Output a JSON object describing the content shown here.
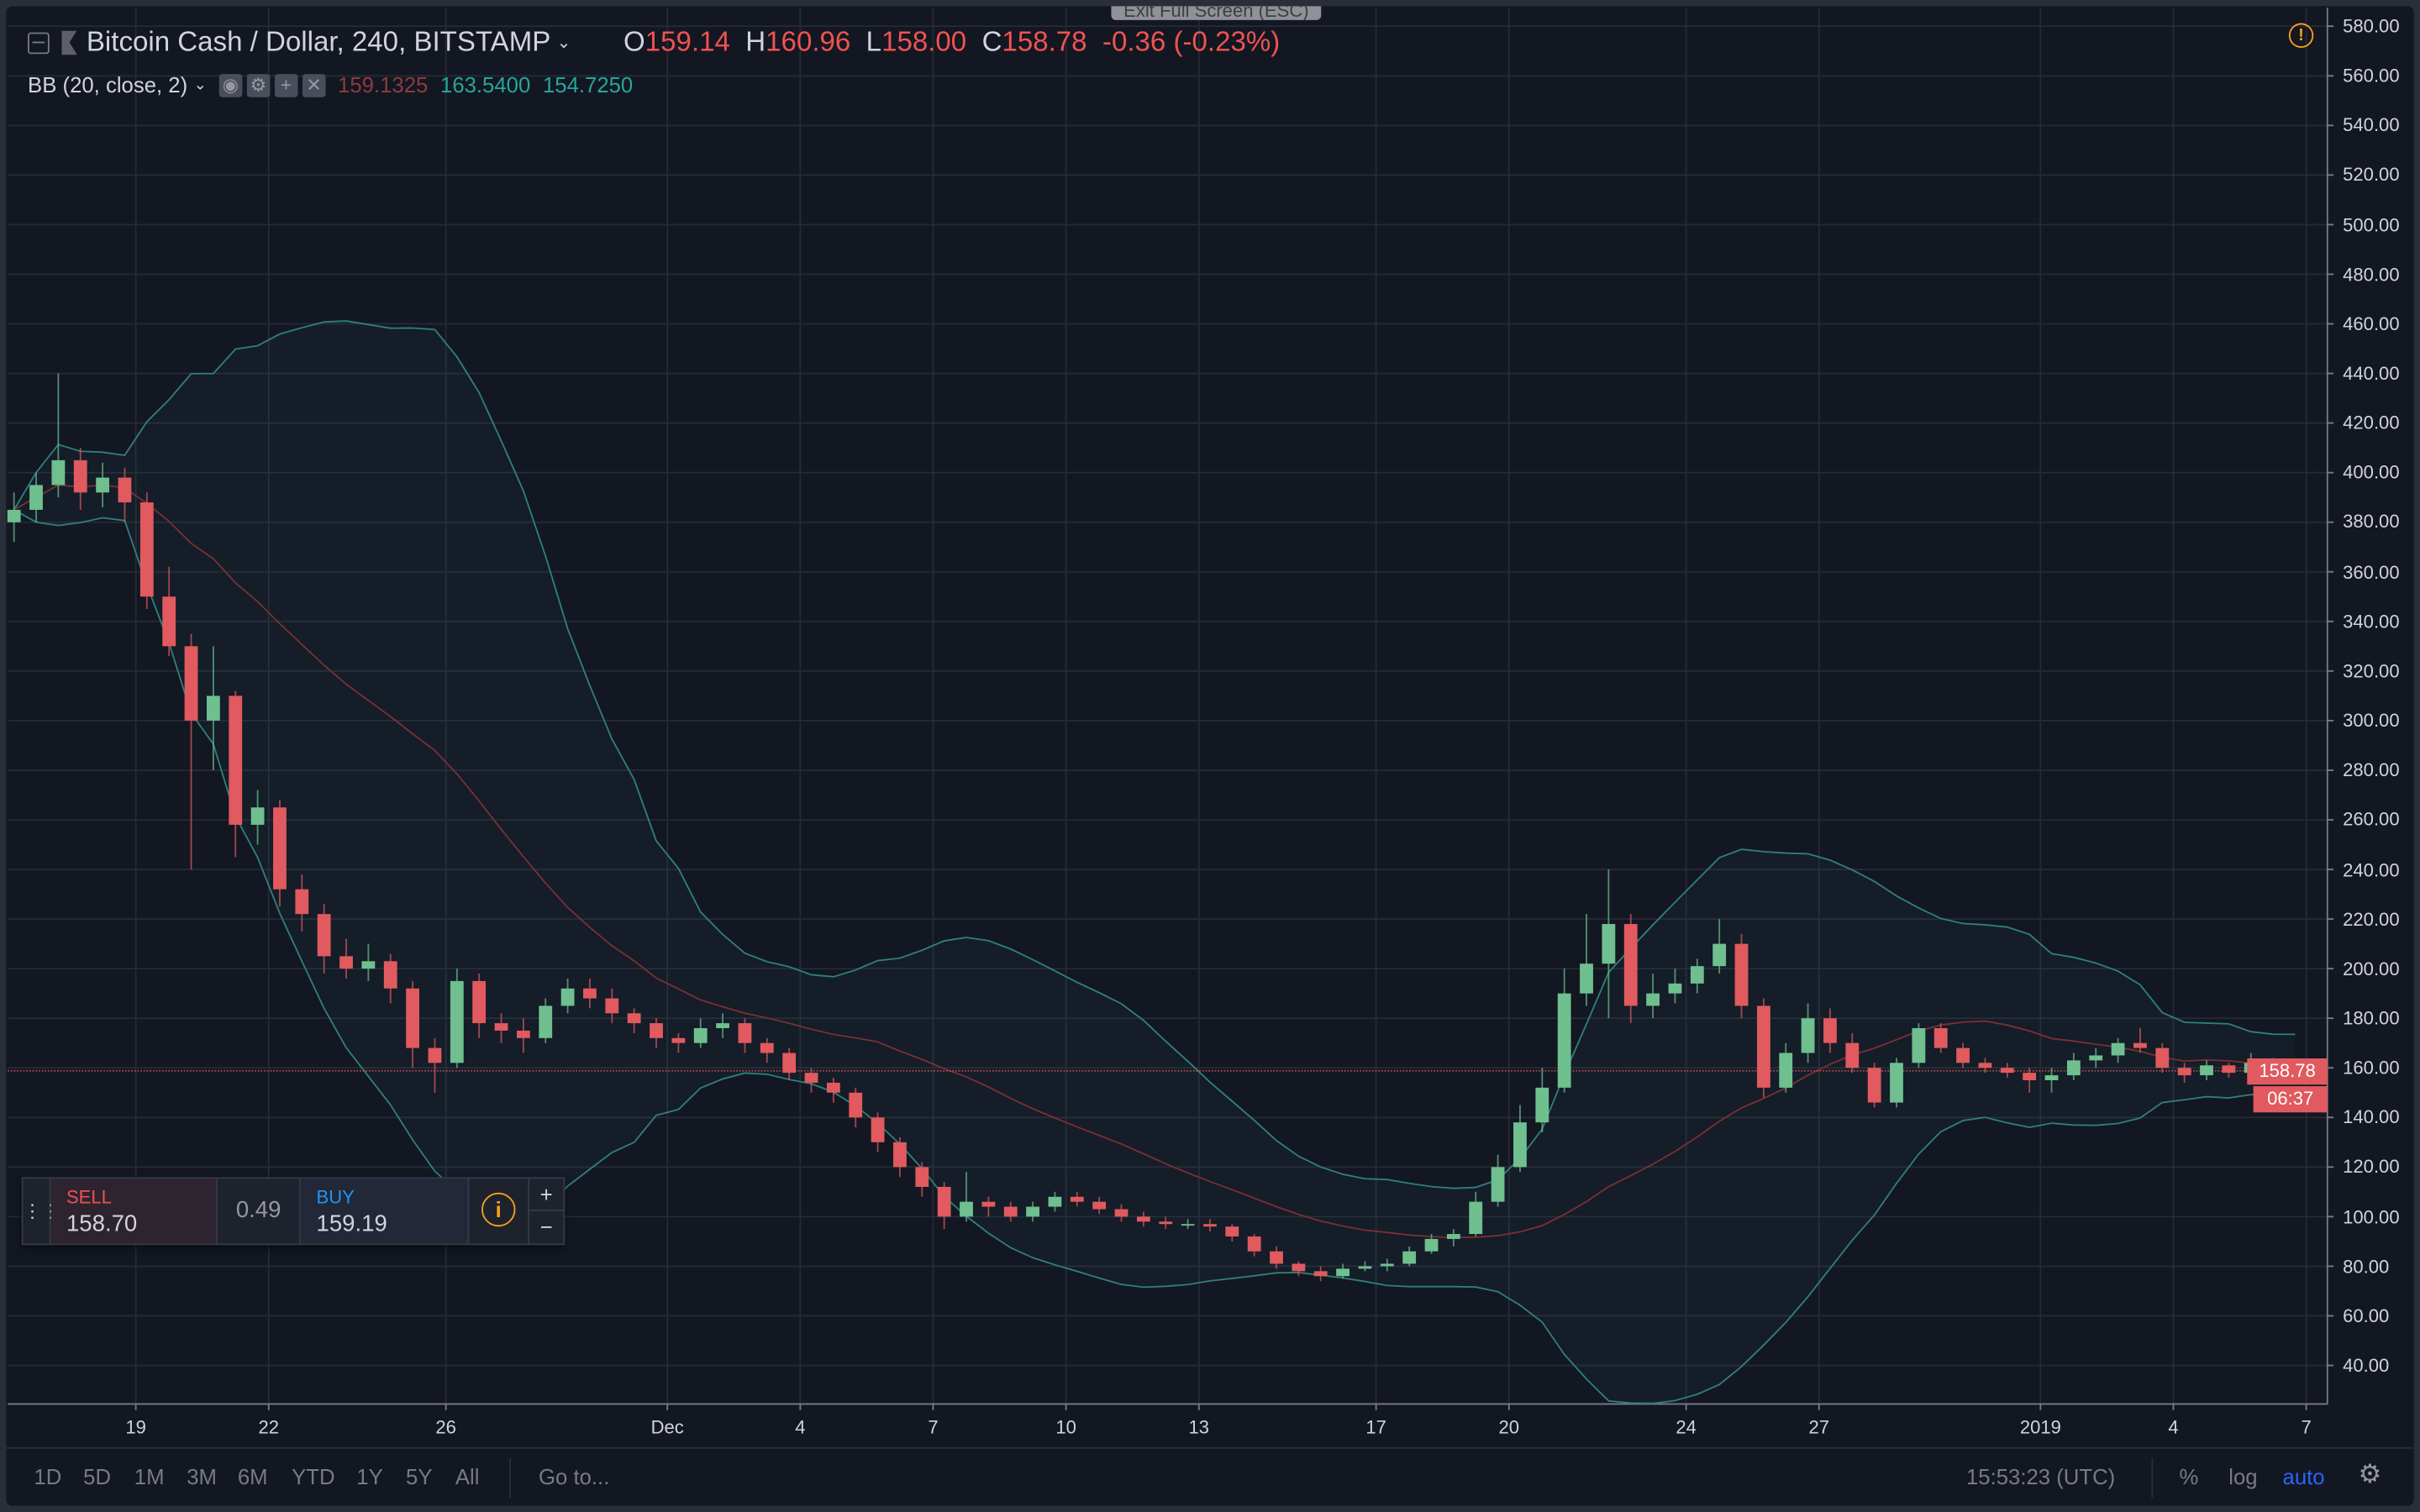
{
  "header": {
    "symbol": "Bitcoin Cash / Dollar, 240, BITSTAMP",
    "ohlc": {
      "o_label": "O",
      "o": "159.14",
      "h_label": "H",
      "h": "160.96",
      "l_label": "L",
      "l": "158.00",
      "c_label": "C",
      "c": "158.78",
      "change": "-0.36 (-0.23%)"
    },
    "indicator": {
      "name": "BB (20, close, 2)",
      "basis": "159.1325",
      "upper": "163.5400",
      "lower": "154.7250"
    },
    "fullscreen_tooltip": "Exit Full Screen (ESC)"
  },
  "price_axis": {
    "labels": [
      "580.00",
      "560.00",
      "540.00",
      "520.00",
      "500.00",
      "480.00",
      "460.00",
      "440.00",
      "420.00",
      "400.00",
      "380.00",
      "360.00",
      "340.00",
      "320.00",
      "300.00",
      "280.00",
      "260.00",
      "240.00",
      "220.00",
      "200.00",
      "180.00",
      "160.00",
      "140.00",
      "120.00",
      "100.00",
      "80.00",
      "60.00",
      "40.00"
    ],
    "last_price": "158.78",
    "countdown": "06:37"
  },
  "trade_widget": {
    "sell_label": "SELL",
    "sell_price": "158.70",
    "spread": "0.49",
    "buy_label": "BUY",
    "buy_price": "159.19",
    "plus": "+",
    "minus": "−"
  },
  "bottom_bar": {
    "ranges": [
      "1D",
      "5D",
      "1M",
      "3M",
      "6M",
      "YTD",
      "1Y",
      "5Y",
      "All"
    ],
    "goto": "Go to...",
    "clock": "15:53:23 (UTC)",
    "percent": "%",
    "log": "log",
    "auto": "auto"
  },
  "colors": {
    "up": "#6fbf8f",
    "down": "#e05a5f",
    "band": "#2f7f7c",
    "basis": "#7a2f34",
    "background": "#131722",
    "accent": "#2962ff",
    "warning": "#f7a21b"
  },
  "chart_data": {
    "type": "candlestick",
    "ylim": [
      40,
      580
    ],
    "grid": true,
    "scale": "linear",
    "indicator": {
      "type": "bollinger",
      "period": 20,
      "source": "close",
      "stddev": 2
    },
    "x_ticks": [
      {
        "label": "19",
        "date": "2018-11-19"
      },
      {
        "label": "22",
        "date": "2018-11-22"
      },
      {
        "label": "26",
        "date": "2018-11-26"
      },
      {
        "label": "Dec",
        "date": "2018-12-01"
      },
      {
        "label": "4",
        "date": "2018-12-04"
      },
      {
        "label": "7",
        "date": "2018-12-07"
      },
      {
        "label": "10",
        "date": "2018-12-10"
      },
      {
        "label": "13",
        "date": "2018-12-13"
      },
      {
        "label": "17",
        "date": "2018-12-17"
      },
      {
        "label": "20",
        "date": "2018-12-20"
      },
      {
        "label": "24",
        "date": "2018-12-24"
      },
      {
        "label": "27",
        "date": "2018-12-27"
      },
      {
        "label": "2019",
        "date": "2019-01-01"
      },
      {
        "label": "4",
        "date": "2019-01-04"
      },
      {
        "label": "7",
        "date": "2019-01-07"
      }
    ],
    "candles_ohlc": [
      [
        "2018-11-16 00:00",
        380,
        392,
        372,
        385
      ],
      [
        "2018-11-16 12:00",
        385,
        400,
        380,
        395
      ],
      [
        "2018-11-17 00:00",
        395,
        440,
        390,
        405
      ],
      [
        "2018-11-17 12:00",
        405,
        410,
        385,
        392
      ],
      [
        "2018-11-18 00:00",
        392,
        404,
        386,
        398
      ],
      [
        "2018-11-18 12:00",
        398,
        402,
        380,
        388
      ],
      [
        "2018-11-19 00:00",
        388,
        392,
        345,
        350
      ],
      [
        "2018-11-19 12:00",
        350,
        362,
        326,
        330
      ],
      [
        "2018-11-20 00:00",
        330,
        335,
        240,
        300
      ],
      [
        "2018-11-20 12:00",
        300,
        330,
        280,
        310
      ],
      [
        "2018-11-21 00:00",
        310,
        312,
        245,
        258
      ],
      [
        "2018-11-21 12:00",
        258,
        272,
        250,
        265
      ],
      [
        "2018-11-22 00:00",
        265,
        268,
        225,
        232
      ],
      [
        "2018-11-22 12:00",
        232,
        238,
        215,
        222
      ],
      [
        "2018-11-23 00:00",
        222,
        226,
        198,
        205
      ],
      [
        "2018-11-23 12:00",
        205,
        212,
        196,
        200
      ],
      [
        "2018-11-24 00:00",
        200,
        210,
        195,
        203
      ],
      [
        "2018-11-24 12:00",
        203,
        206,
        186,
        192
      ],
      [
        "2018-11-25 00:00",
        192,
        195,
        160,
        168
      ],
      [
        "2018-11-25 12:00",
        168,
        172,
        150,
        162
      ],
      [
        "2018-11-26 00:00",
        162,
        200,
        160,
        195
      ],
      [
        "2018-11-26 12:00",
        195,
        198,
        172,
        178
      ],
      [
        "2018-11-27 00:00",
        178,
        182,
        170,
        175
      ],
      [
        "2018-11-27 12:00",
        175,
        180,
        166,
        172
      ],
      [
        "2018-11-28 00:00",
        172,
        188,
        170,
        185
      ],
      [
        "2018-11-28 12:00",
        185,
        196,
        182,
        192
      ],
      [
        "2018-11-29 00:00",
        192,
        196,
        184,
        188
      ],
      [
        "2018-11-29 12:00",
        188,
        192,
        178,
        182
      ],
      [
        "2018-11-30 00:00",
        182,
        184,
        174,
        178
      ],
      [
        "2018-11-30 12:00",
        178,
        180,
        168,
        172
      ],
      [
        "2018-12-01 00:00",
        172,
        174,
        166,
        170
      ],
      [
        "2018-12-01 12:00",
        170,
        180,
        168,
        176
      ],
      [
        "2018-12-02 00:00",
        176,
        182,
        172,
        178
      ],
      [
        "2018-12-02 12:00",
        178,
        180,
        166,
        170
      ],
      [
        "2018-12-03 00:00",
        170,
        172,
        162,
        166
      ],
      [
        "2018-12-03 12:00",
        166,
        168,
        155,
        158
      ],
      [
        "2018-12-04 00:00",
        158,
        160,
        150,
        154
      ],
      [
        "2018-12-04 12:00",
        154,
        156,
        146,
        150
      ],
      [
        "2018-12-05 00:00",
        150,
        152,
        136,
        140
      ],
      [
        "2018-12-05 12:00",
        140,
        142,
        126,
        130
      ],
      [
        "2018-12-06 00:00",
        130,
        132,
        116,
        120
      ],
      [
        "2018-12-06 12:00",
        120,
        122,
        108,
        112
      ],
      [
        "2018-12-07 00:00",
        112,
        114,
        95,
        100
      ],
      [
        "2018-12-07 12:00",
        100,
        118,
        98,
        106
      ],
      [
        "2018-12-08 00:00",
        106,
        108,
        100,
        104
      ],
      [
        "2018-12-08 12:00",
        104,
        106,
        98,
        100
      ],
      [
        "2018-12-09 00:00",
        100,
        106,
        98,
        104
      ],
      [
        "2018-12-09 12:00",
        104,
        110,
        102,
        108
      ],
      [
        "2018-12-10 00:00",
        108,
        110,
        104,
        106
      ],
      [
        "2018-12-10 12:00",
        106,
        108,
        101,
        103
      ],
      [
        "2018-12-11 00:00",
        103,
        105,
        98,
        100
      ],
      [
        "2018-12-11 12:00",
        100,
        102,
        96,
        98
      ],
      [
        "2018-12-12 00:00",
        98,
        100,
        95,
        97
      ],
      [
        "2018-12-12 12:00",
        97,
        99,
        95,
        97
      ],
      [
        "2018-12-13 00:00",
        97,
        99,
        94,
        96
      ],
      [
        "2018-12-13 12:00",
        96,
        97,
        90,
        92
      ],
      [
        "2018-12-14 00:00",
        92,
        93,
        84,
        86
      ],
      [
        "2018-12-14 12:00",
        86,
        88,
        79,
        81
      ],
      [
        "2018-12-15 00:00",
        81,
        82,
        76,
        78
      ],
      [
        "2018-12-15 12:00",
        78,
        80,
        74,
        76
      ],
      [
        "2018-12-16 00:00",
        76,
        81,
        75,
        79
      ],
      [
        "2018-12-16 12:00",
        79,
        82,
        78,
        80
      ],
      [
        "2018-12-17 00:00",
        80,
        83,
        78,
        81
      ],
      [
        "2018-12-17 12:00",
        81,
        88,
        80,
        86
      ],
      [
        "2018-12-18 00:00",
        86,
        93,
        85,
        91
      ],
      [
        "2018-12-18 12:00",
        91,
        95,
        88,
        93
      ],
      [
        "2018-12-19 00:00",
        93,
        110,
        92,
        106
      ],
      [
        "2018-12-19 12:00",
        106,
        125,
        104,
        120
      ],
      [
        "2018-12-20 00:00",
        120,
        145,
        118,
        138
      ],
      [
        "2018-12-20 12:00",
        138,
        160,
        134,
        152
      ],
      [
        "2018-12-21 00:00",
        152,
        200,
        150,
        190
      ],
      [
        "2018-12-21 12:00",
        190,
        222,
        185,
        202
      ],
      [
        "2018-12-22 00:00",
        202,
        240,
        180,
        218
      ],
      [
        "2018-12-22 12:00",
        218,
        222,
        178,
        185
      ],
      [
        "2018-12-23 00:00",
        185,
        198,
        180,
        190
      ],
      [
        "2018-12-23 12:00",
        190,
        200,
        186,
        194
      ],
      [
        "2018-12-24 00:00",
        194,
        204,
        190,
        201
      ],
      [
        "2018-12-24 12:00",
        201,
        220,
        198,
        210
      ],
      [
        "2018-12-25 00:00",
        210,
        214,
        180,
        185
      ],
      [
        "2018-12-25 12:00",
        185,
        188,
        148,
        152
      ],
      [
        "2018-12-26 00:00",
        152,
        170,
        150,
        166
      ],
      [
        "2018-12-26 12:00",
        166,
        186,
        162,
        180
      ],
      [
        "2018-12-27 00:00",
        180,
        184,
        166,
        170
      ],
      [
        "2018-12-27 12:00",
        170,
        174,
        158,
        160
      ],
      [
        "2018-12-28 00:00",
        160,
        162,
        144,
        146
      ],
      [
        "2018-12-28 12:00",
        146,
        164,
        144,
        162
      ],
      [
        "2018-12-29 00:00",
        162,
        178,
        160,
        176
      ],
      [
        "2018-12-29 12:00",
        176,
        178,
        166,
        168
      ],
      [
        "2018-12-30 00:00",
        168,
        170,
        160,
        162
      ],
      [
        "2018-12-30 12:00",
        162,
        164,
        158,
        160
      ],
      [
        "2018-12-31 00:00",
        160,
        162,
        156,
        158
      ],
      [
        "2018-12-31 12:00",
        158,
        160,
        150,
        155
      ],
      [
        "2019-01-01 00:00",
        155,
        160,
        150,
        157
      ],
      [
        "2019-01-01 12:00",
        157,
        166,
        155,
        163
      ],
      [
        "2019-01-02 00:00",
        163,
        168,
        160,
        165
      ],
      [
        "2019-01-02 12:00",
        165,
        172,
        162,
        170
      ],
      [
        "2019-01-03 00:00",
        170,
        176,
        166,
        168
      ],
      [
        "2019-01-03 12:00",
        168,
        170,
        158,
        160
      ],
      [
        "2019-01-04 00:00",
        160,
        162,
        154,
        157
      ],
      [
        "2019-01-04 12:00",
        157,
        163,
        155,
        161
      ],
      [
        "2019-01-05 00:00",
        161,
        162,
        156,
        158
      ],
      [
        "2019-01-05 12:00",
        158,
        166,
        157,
        162
      ],
      [
        "2019-01-06 00:00",
        162,
        164,
        158,
        160
      ],
      [
        "2019-01-06 12:00",
        159.14,
        160.96,
        158.0,
        158.78
      ]
    ]
  }
}
